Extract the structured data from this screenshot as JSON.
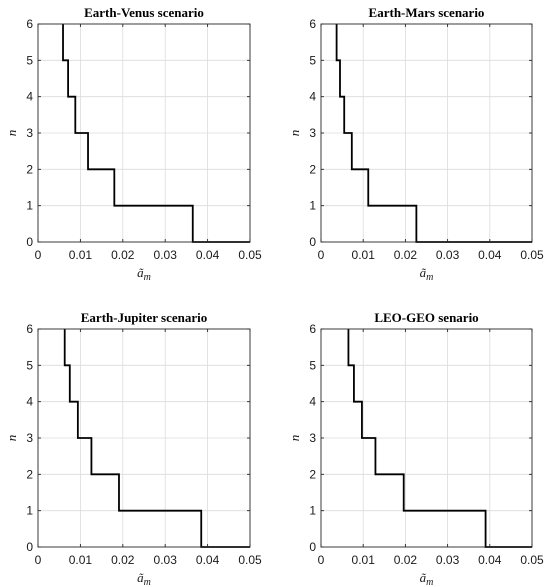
{
  "chart_data": [
    {
      "type": "line",
      "title": "Earth-Venus scenario",
      "xlabel": "ã",
      "xlabel_sub": "m",
      "ylabel": "n",
      "xlim": [
        0,
        0.05
      ],
      "ylim": [
        0,
        6
      ],
      "xticks": [
        "0",
        "0.01",
        "0.02",
        "0.03",
        "0.04",
        "0.05"
      ],
      "yticks": [
        "0",
        "1",
        "2",
        "3",
        "4",
        "5",
        "6"
      ],
      "grid": true,
      "series": [
        {
          "steps": [
            [
              0.0059,
              6
            ],
            [
              0.0059,
              5
            ],
            [
              0.0071,
              5
            ],
            [
              0.0071,
              4
            ],
            [
              0.0088,
              4
            ],
            [
              0.0088,
              3
            ],
            [
              0.0118,
              3
            ],
            [
              0.0118,
              2
            ],
            [
              0.018,
              2
            ],
            [
              0.018,
              1
            ],
            [
              0.0365,
              1
            ],
            [
              0.0365,
              0
            ],
            [
              0.05,
              0
            ]
          ]
        }
      ]
    },
    {
      "type": "line",
      "title": "Earth-Mars scenario",
      "xlabel": "ã",
      "xlabel_sub": "m",
      "ylabel": "n",
      "xlim": [
        0,
        0.05
      ],
      "ylim": [
        0,
        6
      ],
      "xticks": [
        "0",
        "0.01",
        "0.02",
        "0.03",
        "0.04",
        "0.05"
      ],
      "yticks": [
        "0",
        "1",
        "2",
        "3",
        "4",
        "5",
        "6"
      ],
      "grid": true,
      "series": [
        {
          "steps": [
            [
              0.0037,
              6
            ],
            [
              0.0037,
              5
            ],
            [
              0.0045,
              5
            ],
            [
              0.0045,
              4
            ],
            [
              0.0055,
              4
            ],
            [
              0.0055,
              3
            ],
            [
              0.0073,
              3
            ],
            [
              0.0073,
              2
            ],
            [
              0.0112,
              2
            ],
            [
              0.0112,
              1
            ],
            [
              0.0226,
              1
            ],
            [
              0.0226,
              0
            ],
            [
              0.05,
              0
            ]
          ]
        }
      ]
    },
    {
      "type": "line",
      "title": "Earth-Jupiter scenario",
      "xlabel": "ã",
      "xlabel_sub": "m",
      "ylabel": "n",
      "xlim": [
        0,
        0.05
      ],
      "ylim": [
        0,
        6
      ],
      "xticks": [
        "0",
        "0.01",
        "0.02",
        "0.03",
        "0.04",
        "0.05"
      ],
      "yticks": [
        "0",
        "1",
        "2",
        "3",
        "4",
        "5",
        "6"
      ],
      "grid": true,
      "series": [
        {
          "steps": [
            [
              0.0063,
              6
            ],
            [
              0.0063,
              5
            ],
            [
              0.0075,
              5
            ],
            [
              0.0075,
              4
            ],
            [
              0.0094,
              4
            ],
            [
              0.0094,
              3
            ],
            [
              0.0126,
              3
            ],
            [
              0.0126,
              2
            ],
            [
              0.0191,
              2
            ],
            [
              0.0191,
              1
            ],
            [
              0.0385,
              1
            ],
            [
              0.0385,
              0
            ],
            [
              0.05,
              0
            ]
          ]
        }
      ]
    },
    {
      "type": "line",
      "title": "LEO-GEO senario",
      "xlabel": "ã",
      "xlabel_sub": "m",
      "ylabel": "n",
      "xlim": [
        0,
        0.05
      ],
      "ylim": [
        0,
        6
      ],
      "xticks": [
        "0",
        "0.01",
        "0.02",
        "0.03",
        "0.04",
        "0.05"
      ],
      "yticks": [
        "0",
        "1",
        "2",
        "3",
        "4",
        "5",
        "6"
      ],
      "grid": true,
      "series": [
        {
          "steps": [
            [
              0.0065,
              6
            ],
            [
              0.0065,
              5
            ],
            [
              0.0078,
              5
            ],
            [
              0.0078,
              4
            ],
            [
              0.0097,
              4
            ],
            [
              0.0097,
              3
            ],
            [
              0.0129,
              3
            ],
            [
              0.0129,
              2
            ],
            [
              0.0196,
              2
            ],
            [
              0.0196,
              1
            ],
            [
              0.039,
              1
            ],
            [
              0.039,
              0
            ],
            [
              0.05,
              0
            ]
          ]
        }
      ]
    }
  ]
}
